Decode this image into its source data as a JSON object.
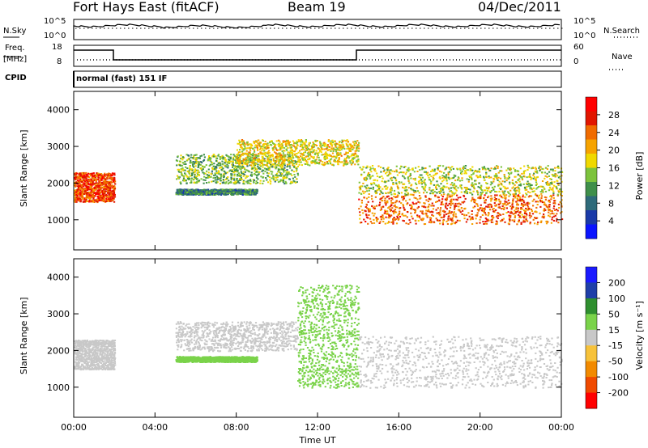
{
  "header": {
    "title": "Fort Hays East (fitACF)",
    "beam": "Beam 19",
    "date": "04/Dec/2011"
  },
  "panels": {
    "nsky": {
      "label": "N.Sky",
      "ticks": [
        "10^5",
        "10^0"
      ]
    },
    "nsearch": {
      "label": "N.Search",
      "ticks": [
        "10^5",
        "10^0"
      ]
    },
    "freq": {
      "label_line1": "Freq.",
      "label_line2": "[MHz]",
      "ticks": [
        "18",
        "8"
      ]
    },
    "nave": {
      "label": "Nave",
      "ticks": [
        "60",
        "0"
      ]
    },
    "cpid": {
      "label": "CPID",
      "value": "normal (fast) 151 IF"
    }
  },
  "colors": {
    "power": [
      "#0a14ff",
      "#1a3aa8",
      "#2e6a7a",
      "#3f8f4a",
      "#7cc33c",
      "#f0d800",
      "#f6a300",
      "#f06b00",
      "#e11600",
      "#ff0000"
    ],
    "velocity": [
      "#ff0000",
      "#f04a00",
      "#f28a00",
      "#f7c23a",
      "#c8c8c8",
      "#7ad34a",
      "#2f8f2f",
      "#1f3fa8",
      "#1a1aff"
    ]
  },
  "chart_data": [
    {
      "type": "heatmap",
      "title": "",
      "xlabel": "Time UT",
      "ylabel": "Slant Range [km]",
      "x_ticks": [
        "00:00",
        "04:00",
        "08:00",
        "12:00",
        "16:00",
        "20:00",
        "00:00"
      ],
      "y_ticks": [
        1000,
        2000,
        3000,
        4000
      ],
      "xlim": [
        0,
        24
      ],
      "ylim": [
        180,
        4500
      ],
      "colorbar": {
        "label": "Power [dB]",
        "ticks": [
          4,
          8,
          12,
          16,
          20,
          24,
          28
        ],
        "range": [
          0,
          32
        ]
      },
      "features": [
        {
          "t": [
            0.0,
            2.0
          ],
          "range": [
            1500,
            2300
          ],
          "value": 26
        },
        {
          "t": [
            5.0,
            11.0
          ],
          "range": [
            2000,
            2800
          ],
          "value": 14
        },
        {
          "t": [
            8.0,
            14.0
          ],
          "range": [
            2500,
            3200
          ],
          "value": 18
        },
        {
          "t": [
            5.0,
            9.0
          ],
          "range": [
            1700,
            1850
          ],
          "value": 10
        },
        {
          "t": [
            14.0,
            24.0
          ],
          "range": [
            900,
            1700
          ],
          "value": 24
        },
        {
          "t": [
            14.0,
            24.0
          ],
          "range": [
            1700,
            2500
          ],
          "value": 16
        }
      ]
    },
    {
      "type": "heatmap",
      "title": "",
      "xlabel": "Time UT",
      "ylabel": "Slant Range [km]",
      "x_ticks": [
        "00:00",
        "04:00",
        "08:00",
        "12:00",
        "16:00",
        "20:00",
        "00:00"
      ],
      "y_ticks": [
        1000,
        2000,
        3000,
        4000
      ],
      "xlim": [
        0,
        24
      ],
      "ylim": [
        180,
        4500
      ],
      "colorbar": {
        "label": "Velocity [m s⁻¹]",
        "ticks": [
          200,
          100,
          50,
          15,
          -15,
          -50,
          -100,
          -200
        ],
        "range": [
          -250,
          250
        ]
      },
      "features": [
        {
          "t": [
            0.0,
            2.0
          ],
          "range": [
            1500,
            2300
          ],
          "value": 0
        },
        {
          "t": [
            5.0,
            11.0
          ],
          "range": [
            2000,
            2800
          ],
          "value": 0
        },
        {
          "t": [
            5.0,
            9.0
          ],
          "range": [
            1700,
            1850
          ],
          "value": 30
        },
        {
          "t": [
            11.0,
            14.0
          ],
          "range": [
            1000,
            3800
          ],
          "value": 30
        },
        {
          "t": [
            14.0,
            24.0
          ],
          "range": [
            1000,
            2400
          ],
          "value": 0
        }
      ]
    }
  ]
}
